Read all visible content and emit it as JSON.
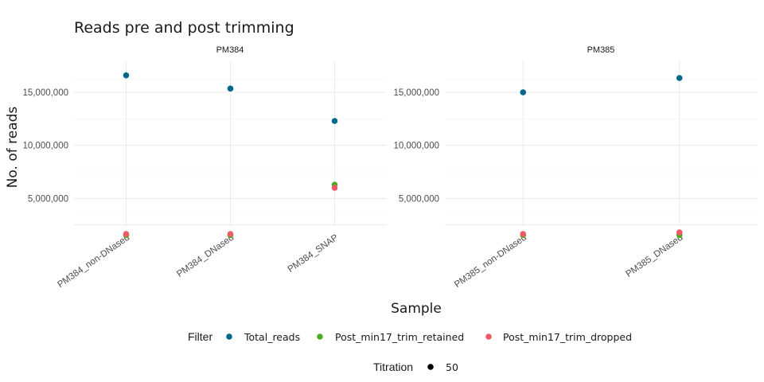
{
  "chart_data": {
    "type": "scatter",
    "title": "Reads pre and post trimming",
    "xlabel": "Sample",
    "ylabel": "No. of reads",
    "ylim": [
      2400000,
      18000000
    ],
    "yticks": [
      5000000,
      10000000,
      15000000
    ],
    "ytick_labels": [
      "5,000,000",
      "10,000,000",
      "15,000,000"
    ],
    "grid": true,
    "legend_position": "bottom",
    "panels": [
      {
        "name": "PM384",
        "categories": [
          "PM384_non-DNased",
          "PM384_DNased",
          "PM384_SNAP"
        ],
        "series": [
          {
            "name": "Total_reads",
            "values": [
              16600000,
              15350000,
              12300000
            ]
          },
          {
            "name": "Post_min17_trim_retained",
            "values": [
              1550000,
              1550000,
              6300000
            ]
          },
          {
            "name": "Post_min17_trim_dropped",
            "values": [
              1650000,
              1650000,
              6000000
            ]
          }
        ]
      },
      {
        "name": "PM385",
        "categories": [
          "PM385_non-DNased",
          "PM385_DNased"
        ],
        "series": [
          {
            "name": "Total_reads",
            "values": [
              15000000,
              16350000
            ]
          },
          {
            "name": "Post_min17_trim_retained",
            "values": [
              1550000,
              1550000
            ]
          },
          {
            "name": "Post_min17_trim_dropped",
            "values": [
              1650000,
              1800000
            ]
          }
        ]
      }
    ],
    "legend": {
      "filter_title": "Filter",
      "filter_entries": [
        {
          "name": "Total_reads",
          "color": "#00688B"
        },
        {
          "name": "Post_min17_trim_retained",
          "color": "#4DAC26"
        },
        {
          "name": "Post_min17_trim_dropped",
          "color": "#F0596A"
        }
      ],
      "titration_title": "Titration",
      "titration_entries": [
        {
          "name": "50",
          "color": "#000000"
        }
      ]
    }
  }
}
